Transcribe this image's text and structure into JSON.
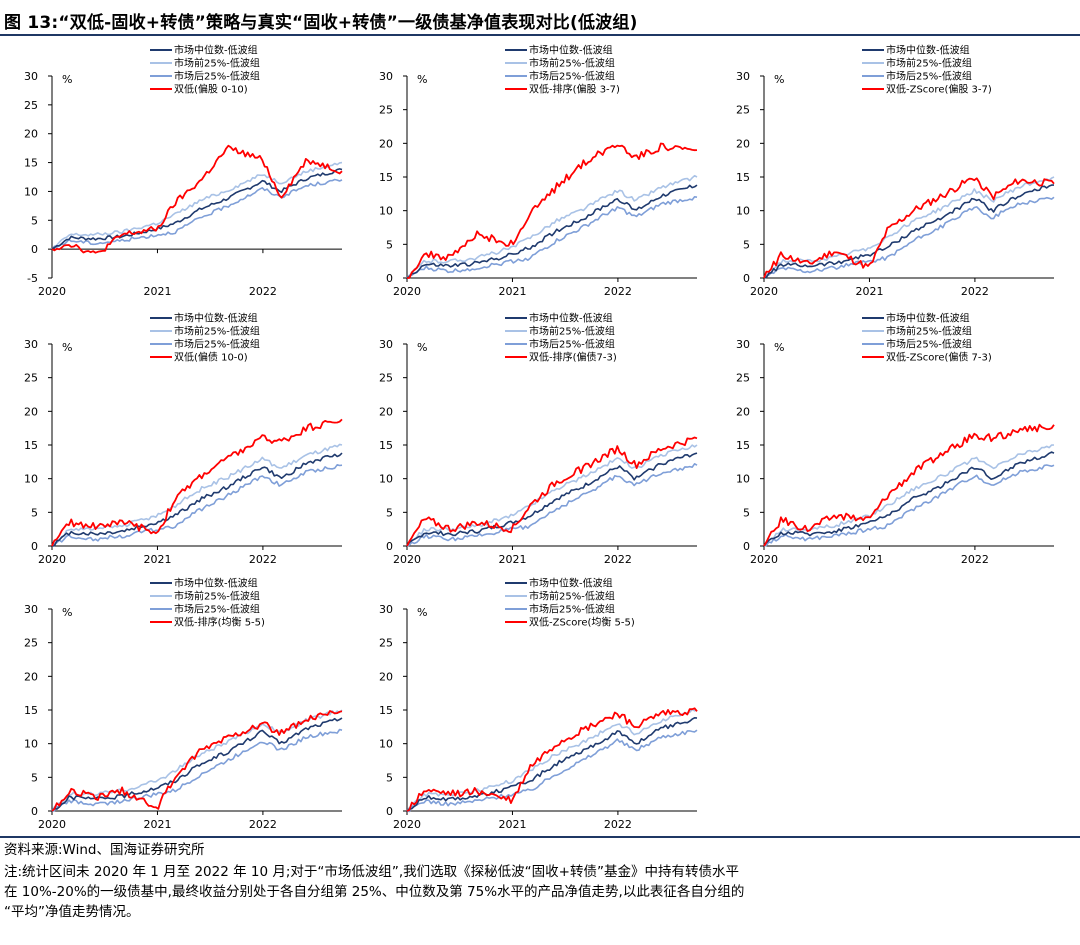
{
  "figure": {
    "title": "图 13:“双低-固收+转债”策略与真实“固收+转债”一级债基净值表现对比(低波组)"
  },
  "colors": {
    "median": "#1f3a6e",
    "top25": "#a9c2e6",
    "bottom25": "#7f9fd8",
    "strategy": "#ff0000",
    "axis": "#000000"
  },
  "chart_data": [
    {
      "type": "line",
      "unit": "%",
      "ylim": [
        -5,
        30
      ],
      "yticks": [
        "-5",
        "0",
        "5",
        "10",
        "15",
        "20",
        "25",
        "30"
      ],
      "xticks": [
        "2020",
        "2021",
        "2022"
      ],
      "legend": [
        "市场中位数-低波组",
        "市场前25%-低波组",
        "市场后25%-低波组",
        "双低(偏股 0-10)"
      ],
      "x": [
        "2020-01",
        "2020-03",
        "2020-06",
        "2020-09",
        "2021-01",
        "2021-03",
        "2021-06",
        "2021-09",
        "2022-01",
        "2022-03",
        "2022-06",
        "2022-10"
      ],
      "series": [
        {
          "name": "市场中位数-低波组",
          "role": "median",
          "values": [
            0.0,
            2.0,
            1.8,
            2.2,
            3.5,
            4.5,
            7.0,
            8.8,
            11.8,
            10.0,
            12.3,
            13.8
          ]
        },
        {
          "name": "市场前25%-低波组",
          "role": "top25",
          "values": [
            0.0,
            2.5,
            2.5,
            3.0,
            4.5,
            6.0,
            8.5,
            10.2,
            13.0,
            11.5,
            13.5,
            15.0
          ]
        },
        {
          "name": "市场后25%-低波组",
          "role": "bottom25",
          "values": [
            0.0,
            1.5,
            1.0,
            1.5,
            2.5,
            3.0,
            5.5,
            7.5,
            10.5,
            9.0,
            11.0,
            12.0
          ]
        },
        {
          "name": "双低(偏股 0-10)",
          "role": "strategy",
          "values": [
            0.0,
            1.0,
            -1.0,
            2.5,
            3.5,
            8.0,
            12.0,
            17.5,
            15.5,
            9.0,
            15.5,
            13.5
          ]
        }
      ]
    },
    {
      "type": "line",
      "unit": "%",
      "ylim": [
        0,
        30
      ],
      "yticks": [
        "0",
        "5",
        "10",
        "15",
        "20",
        "25",
        "30"
      ],
      "xticks": [
        "2020",
        "2021",
        "2022"
      ],
      "legend": [
        "市场中位数-低波组",
        "市场前25%-低波组",
        "市场后25%-低波组",
        "双低-排序(偏股 3-7)"
      ],
      "x": [
        "2020-01",
        "2020-03",
        "2020-06",
        "2020-09",
        "2021-01",
        "2021-03",
        "2021-06",
        "2021-09",
        "2022-01",
        "2022-03",
        "2022-06",
        "2022-10"
      ],
      "series": [
        {
          "name": "市场中位数-低波组",
          "role": "median",
          "values": [
            0.0,
            2.0,
            1.8,
            2.2,
            3.5,
            4.5,
            7.0,
            8.8,
            11.8,
            10.0,
            12.3,
            13.8
          ]
        },
        {
          "name": "市场前25%-低波组",
          "role": "top25",
          "values": [
            0.0,
            2.5,
            2.5,
            3.0,
            4.5,
            6.0,
            8.5,
            10.2,
            13.0,
            11.5,
            13.5,
            15.0
          ]
        },
        {
          "name": "市场后25%-低波组",
          "role": "bottom25",
          "values": [
            0.0,
            1.5,
            1.0,
            1.5,
            2.5,
            3.0,
            5.5,
            7.5,
            10.5,
            9.0,
            11.0,
            12.0
          ]
        },
        {
          "name": "双低-排序(偏股 3-7)",
          "role": "strategy",
          "values": [
            0.0,
            3.5,
            3.0,
            6.5,
            5.0,
            9.5,
            13.5,
            17.0,
            20.0,
            18.0,
            19.5,
            19.0
          ]
        }
      ]
    },
    {
      "type": "line",
      "unit": "%",
      "ylim": [
        0,
        30
      ],
      "yticks": [
        "0",
        "5",
        "10",
        "15",
        "20",
        "25",
        "30"
      ],
      "xticks": [
        "2020",
        "2021",
        "2022"
      ],
      "legend": [
        "市场中位数-低波组",
        "市场前25%-低波组",
        "市场后25%-低波组",
        "双低-ZScore(偏股 3-7)"
      ],
      "x": [
        "2020-01",
        "2020-03",
        "2020-06",
        "2020-09",
        "2021-01",
        "2021-03",
        "2021-06",
        "2021-09",
        "2022-01",
        "2022-03",
        "2022-06",
        "2022-10"
      ],
      "series": [
        {
          "name": "市场中位数-低波组",
          "role": "median",
          "values": [
            0.0,
            2.0,
            1.8,
            2.2,
            3.5,
            4.5,
            7.0,
            8.8,
            11.8,
            10.0,
            12.3,
            13.8
          ]
        },
        {
          "name": "市场前25%-低波组",
          "role": "top25",
          "values": [
            0.0,
            2.5,
            2.5,
            3.0,
            4.5,
            6.0,
            8.5,
            10.2,
            13.0,
            11.5,
            13.5,
            15.0
          ]
        },
        {
          "name": "市场后25%-低波组",
          "role": "bottom25",
          "values": [
            0.0,
            1.5,
            1.0,
            1.5,
            2.5,
            3.0,
            5.5,
            7.5,
            10.5,
            9.0,
            11.0,
            12.0
          ]
        },
        {
          "name": "双低-ZScore(偏股 3-7)",
          "role": "strategy",
          "values": [
            0.0,
            3.5,
            2.0,
            4.0,
            1.5,
            7.0,
            10.0,
            12.0,
            15.0,
            12.0,
            14.5,
            14.0
          ]
        }
      ]
    },
    {
      "type": "line",
      "unit": "%",
      "ylim": [
        0,
        30
      ],
      "yticks": [
        "0",
        "5",
        "10",
        "15",
        "20",
        "25",
        "30"
      ],
      "xticks": [
        "2020",
        "2021",
        "2022"
      ],
      "legend": [
        "市场中位数-低波组",
        "市场前25%-低波组",
        "市场后25%-低波组",
        "双低(偏债 10-0)"
      ],
      "x": [
        "2020-01",
        "2020-03",
        "2020-06",
        "2020-09",
        "2021-01",
        "2021-03",
        "2021-06",
        "2021-09",
        "2022-01",
        "2022-03",
        "2022-06",
        "2022-10"
      ],
      "series": [
        {
          "name": "市场中位数-低波组",
          "role": "median",
          "values": [
            0.0,
            2.0,
            1.8,
            2.2,
            3.5,
            4.5,
            7.0,
            8.8,
            11.8,
            10.0,
            12.3,
            13.8
          ]
        },
        {
          "name": "市场前25%-低波组",
          "role": "top25",
          "values": [
            0.0,
            2.5,
            2.5,
            3.0,
            4.5,
            6.0,
            8.5,
            10.2,
            13.0,
            11.5,
            13.5,
            15.0
          ]
        },
        {
          "name": "市场后25%-低波组",
          "role": "bottom25",
          "values": [
            0.0,
            1.5,
            1.0,
            1.5,
            2.5,
            3.0,
            5.5,
            7.5,
            10.5,
            9.0,
            11.0,
            12.0
          ]
        },
        {
          "name": "双低(偏债 10-0)",
          "role": "strategy",
          "values": [
            0.0,
            3.5,
            3.0,
            3.5,
            2.0,
            7.0,
            10.5,
            13.0,
            16.0,
            15.5,
            17.5,
            18.8
          ]
        }
      ]
    },
    {
      "type": "line",
      "unit": "%",
      "ylim": [
        0,
        30
      ],
      "yticks": [
        "0",
        "5",
        "10",
        "15",
        "20",
        "25",
        "30"
      ],
      "xticks": [
        "2020",
        "2021",
        "2022"
      ],
      "legend": [
        "市场中位数-低波组",
        "市场前25%-低波组",
        "市场后25%-低波组",
        "双低-排序(偏债7-3)"
      ],
      "x": [
        "2020-01",
        "2020-03",
        "2020-06",
        "2020-09",
        "2021-01",
        "2021-03",
        "2021-06",
        "2021-09",
        "2022-01",
        "2022-03",
        "2022-06",
        "2022-10"
      ],
      "series": [
        {
          "name": "市场中位数-低波组",
          "role": "median",
          "values": [
            0.0,
            2.0,
            1.8,
            2.2,
            3.5,
            4.5,
            7.0,
            8.8,
            11.8,
            10.0,
            12.3,
            13.8
          ]
        },
        {
          "name": "市场前25%-低波组",
          "role": "top25",
          "values": [
            0.0,
            2.5,
            2.5,
            3.0,
            4.5,
            6.0,
            8.5,
            10.2,
            13.0,
            11.5,
            13.5,
            15.0
          ]
        },
        {
          "name": "市场后25%-低波组",
          "role": "bottom25",
          "values": [
            0.0,
            1.5,
            1.0,
            1.5,
            2.5,
            3.0,
            5.5,
            7.5,
            10.5,
            9.0,
            11.0,
            12.0
          ]
        },
        {
          "name": "双低-排序(偏债7-3)",
          "role": "strategy",
          "values": [
            0.0,
            4.0,
            2.5,
            3.5,
            2.5,
            6.0,
            9.5,
            11.5,
            14.5,
            12.0,
            14.5,
            16.0
          ]
        }
      ]
    },
    {
      "type": "line",
      "unit": "%",
      "ylim": [
        0,
        30
      ],
      "yticks": [
        "0",
        "5",
        "10",
        "15",
        "20",
        "25",
        "30"
      ],
      "xticks": [
        "2020",
        "2021",
        "2022"
      ],
      "legend": [
        "市场中位数-低波组",
        "市场前25%-低波组",
        "市场后25%-低波组",
        "双低-ZScore(偏债 7-3)"
      ],
      "x": [
        "2020-01",
        "2020-03",
        "2020-06",
        "2020-09",
        "2021-01",
        "2021-03",
        "2021-06",
        "2021-09",
        "2022-01",
        "2022-03",
        "2022-06",
        "2022-10"
      ],
      "series": [
        {
          "name": "市场中位数-低波组",
          "role": "median",
          "values": [
            0.0,
            2.0,
            1.8,
            2.2,
            3.5,
            4.5,
            7.0,
            8.8,
            11.8,
            10.0,
            12.3,
            13.8
          ]
        },
        {
          "name": "市场前25%-低波组",
          "role": "top25",
          "values": [
            0.0,
            2.5,
            2.5,
            3.0,
            4.5,
            6.0,
            8.5,
            10.2,
            13.0,
            11.5,
            13.5,
            15.0
          ]
        },
        {
          "name": "市场后25%-低波组",
          "role": "bottom25",
          "values": [
            0.0,
            1.5,
            1.0,
            1.5,
            2.5,
            3.0,
            5.5,
            7.5,
            10.5,
            9.0,
            11.0,
            12.0
          ]
        },
        {
          "name": "双低-ZScore(偏债 7-3)",
          "role": "strategy",
          "values": [
            0.0,
            4.0,
            2.5,
            4.5,
            4.0,
            7.5,
            11.0,
            13.5,
            16.5,
            16.0,
            17.0,
            18.0
          ]
        }
      ]
    },
    {
      "type": "line",
      "unit": "%",
      "ylim": [
        0,
        30
      ],
      "yticks": [
        "0",
        "5",
        "10",
        "15",
        "20",
        "25",
        "30"
      ],
      "xticks": [
        "2020",
        "2021",
        "2022"
      ],
      "legend": [
        "市场中位数-低波组",
        "市场前25%-低波组",
        "市场后25%-低波组",
        "双低-排序(均衡 5-5)"
      ],
      "x": [
        "2020-01",
        "2020-03",
        "2020-06",
        "2020-09",
        "2021-01",
        "2021-03",
        "2021-06",
        "2021-09",
        "2022-01",
        "2022-03",
        "2022-06",
        "2022-10"
      ],
      "series": [
        {
          "name": "市场中位数-低波组",
          "role": "median",
          "values": [
            0.0,
            2.0,
            1.8,
            2.2,
            3.5,
            4.5,
            7.0,
            8.8,
            11.8,
            10.0,
            12.3,
            13.8
          ]
        },
        {
          "name": "市场前25%-低波组",
          "role": "top25",
          "values": [
            0.0,
            2.5,
            2.5,
            3.0,
            4.5,
            6.0,
            8.5,
            10.2,
            13.0,
            11.5,
            13.5,
            15.0
          ]
        },
        {
          "name": "市场后25%-低波组",
          "role": "bottom25",
          "values": [
            0.0,
            1.5,
            1.0,
            1.5,
            2.5,
            3.0,
            5.5,
            7.5,
            10.5,
            9.0,
            11.0,
            12.0
          ]
        },
        {
          "name": "双低-排序(均衡 5-5)",
          "role": "strategy",
          "values": [
            0.0,
            3.0,
            2.0,
            3.0,
            0.5,
            5.0,
            9.0,
            11.0,
            13.0,
            11.5,
            13.5,
            14.8
          ]
        }
      ]
    },
    {
      "type": "line",
      "unit": "%",
      "ylim": [
        0,
        30
      ],
      "yticks": [
        "0",
        "5",
        "10",
        "15",
        "20",
        "25",
        "30"
      ],
      "xticks": [
        "2020",
        "2021",
        "2022"
      ],
      "legend": [
        "市场中位数-低波组",
        "市场前25%-低波组",
        "市场后25%-低波组",
        "双低-ZScore(均衡 5-5)"
      ],
      "x": [
        "2020-01",
        "2020-03",
        "2020-06",
        "2020-09",
        "2021-01",
        "2021-03",
        "2021-06",
        "2021-09",
        "2022-01",
        "2022-03",
        "2022-06",
        "2022-10"
      ],
      "series": [
        {
          "name": "市场中位数-低波组",
          "role": "median",
          "values": [
            0.0,
            2.0,
            1.8,
            2.2,
            3.5,
            4.5,
            7.0,
            8.8,
            11.8,
            10.0,
            12.3,
            13.8
          ]
        },
        {
          "name": "市场前25%-低波组",
          "role": "top25",
          "values": [
            0.0,
            2.5,
            2.5,
            3.0,
            4.5,
            6.0,
            8.5,
            10.2,
            13.0,
            11.5,
            13.5,
            15.0
          ]
        },
        {
          "name": "市场后25%-低波组",
          "role": "bottom25",
          "values": [
            0.0,
            1.5,
            1.0,
            1.5,
            2.5,
            3.0,
            5.5,
            7.5,
            10.5,
            9.0,
            11.0,
            12.0
          ]
        },
        {
          "name": "双低-ZScore(均衡 5-5)",
          "role": "strategy",
          "values": [
            0.0,
            3.0,
            2.5,
            3.0,
            1.5,
            6.5,
            10.0,
            12.0,
            14.5,
            12.5,
            14.5,
            14.8
          ]
        }
      ]
    }
  ],
  "footer": {
    "source": "资料来源:Wind、国海证券研究所",
    "note_lines": [
      "注:统计区间未 2020 年 1 月至 2022 年 10 月;对于“市场低波组”,我们选取《探秘低波“固收+转债”基金》中持有转债水平",
      "在 10%-20%的一级债基中,最终收益分别处于各自分组第 25%、中位数及第 75%水平的产品净值走势,以此表征各自分组的",
      "“平均”净值走势情况。"
    ]
  }
}
